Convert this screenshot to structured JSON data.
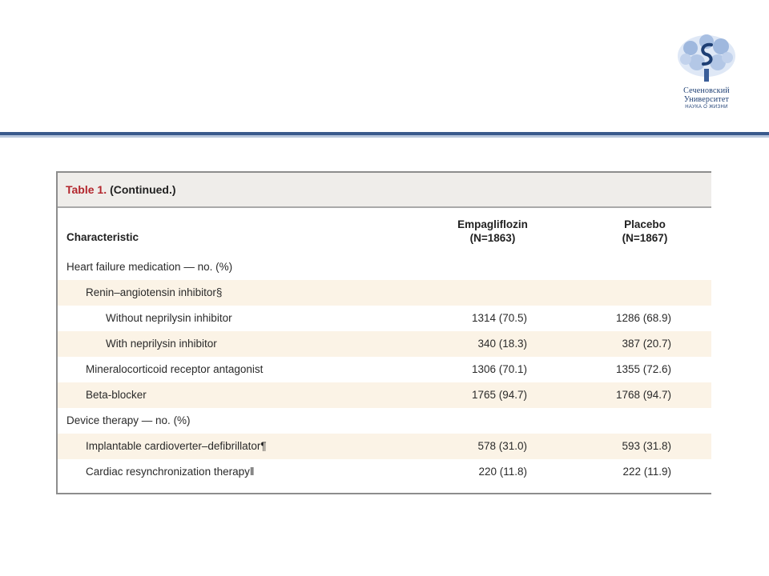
{
  "logo": {
    "line1": "Сеченовский",
    "line2": "Университет",
    "line3": "НАУКА О ЖИЗНИ",
    "color": "#1e3f74",
    "icon": "sechenov-tree-logo"
  },
  "table": {
    "caption_label": "Table 1.",
    "caption_continued": "(Continued.)",
    "header": {
      "characteristic": "Characteristic",
      "col1_line1": "Empagliflozin",
      "col1_line2": "(N=1863)",
      "col2_line1": "Placebo",
      "col2_line2": "(N=1867)"
    },
    "rows": [
      {
        "label": "Heart failure medication — no. (%)",
        "v1": "",
        "v2": ""
      },
      {
        "label": "Renin–angiotensin inhibitor§",
        "v1": "",
        "v2": ""
      },
      {
        "label": "Without neprilysin inhibitor",
        "v1": "1314 (70.5)",
        "v2": "1286 (68.9)"
      },
      {
        "label": "With neprilysin inhibitor",
        "v1": "340 (18.3)",
        "v2": "387 (20.7)"
      },
      {
        "label": "Mineralocorticoid receptor antagonist",
        "v1": "1306 (70.1)",
        "v2": "1355 (72.6)"
      },
      {
        "label": "Beta-blocker",
        "v1": "1765 (94.7)",
        "v2": "1768 (94.7)"
      },
      {
        "label": "Device therapy — no. (%)",
        "v1": "",
        "v2": ""
      },
      {
        "label": "Implantable cardioverter–defibrillator¶",
        "v1": "578 (31.0)",
        "v2": "593 (31.8)"
      },
      {
        "label": "Cardiac resynchronization therapy‖",
        "v1": "220 (11.8)",
        "v2": "222 (11.9)"
      }
    ],
    "colors": {
      "caption_label": "#b3262d",
      "shade": "#fbf3e6",
      "caption_bg": "#efedea"
    }
  },
  "header_line_color": "#3a5a8c"
}
